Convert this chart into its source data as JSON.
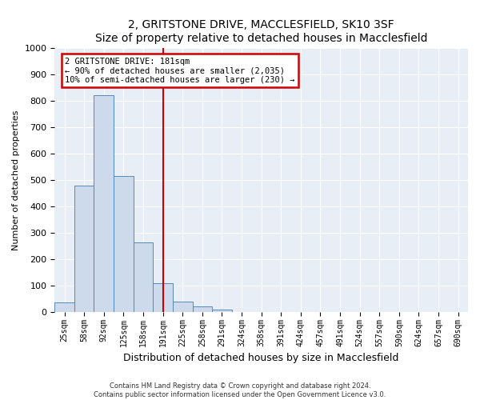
{
  "title": "2, GRITSTONE DRIVE, MACCLESFIELD, SK10 3SF",
  "subtitle": "Size of property relative to detached houses in Macclesfield",
  "xlabel": "Distribution of detached houses by size in Macclesfield",
  "ylabel": "Number of detached properties",
  "bar_labels": [
    "25sqm",
    "58sqm",
    "92sqm",
    "125sqm",
    "158sqm",
    "191sqm",
    "225sqm",
    "258sqm",
    "291sqm",
    "324sqm",
    "358sqm",
    "391sqm",
    "424sqm",
    "457sqm",
    "491sqm",
    "524sqm",
    "557sqm",
    "590sqm",
    "624sqm",
    "657sqm",
    "690sqm"
  ],
  "bar_values": [
    35,
    480,
    820,
    515,
    265,
    110,
    40,
    20,
    8,
    0,
    0,
    0,
    0,
    0,
    0,
    0,
    0,
    0,
    0,
    0,
    0
  ],
  "bar_color": "#ccdaeb",
  "bar_edge_color": "#5588bb",
  "vline_x_index": 5,
  "vline_color": "#cc0000",
  "annotation_title": "2 GRITSTONE DRIVE: 181sqm",
  "annotation_line1": "← 90% of detached houses are smaller (2,035)",
  "annotation_line2": "10% of semi-detached houses are larger (230) →",
  "annotation_box_color": "#cc0000",
  "ylim": [
    0,
    1000
  ],
  "yticks": [
    0,
    100,
    200,
    300,
    400,
    500,
    600,
    700,
    800,
    900,
    1000
  ],
  "footer1": "Contains HM Land Registry data © Crown copyright and database right 2024.",
  "footer2": "Contains public sector information licensed under the Open Government Licence v3.0.",
  "fig_bg_color": "#ffffff",
  "plot_bg_color": "#e8eef5"
}
